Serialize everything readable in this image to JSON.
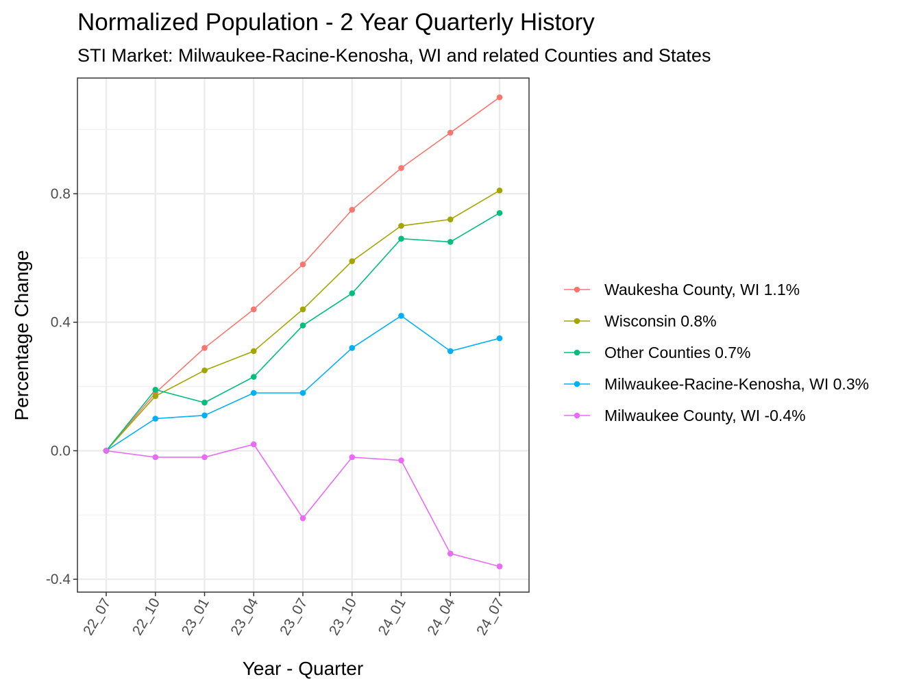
{
  "chart_data": {
    "type": "line",
    "title": "Normalized Population - 2 Year Quarterly History",
    "subtitle": "STI Market: Milwaukee-Racine-Kenosha, WI and related Counties and States",
    "xlabel": "Year - Quarter",
    "ylabel": "Percentage Change",
    "categories": [
      "22_07",
      "22_10",
      "23_01",
      "23_04",
      "23_07",
      "23_10",
      "24_01",
      "24_04",
      "24_07"
    ],
    "yticks": [
      -0.4,
      0.0,
      0.4,
      0.8
    ],
    "ytick_labels": [
      "-0.4",
      "0.0",
      "0.4",
      "0.8"
    ],
    "ylim": [
      -0.44,
      1.16
    ],
    "grid": true,
    "legend_position": "right",
    "series": [
      {
        "name": "Waukesha County, WI 1.1%",
        "color": "#F8766D",
        "values": [
          0.0,
          0.18,
          0.32,
          0.44,
          0.58,
          0.75,
          0.88,
          0.99,
          1.1
        ]
      },
      {
        "name": "Wisconsin 0.8%",
        "color": "#A3A500",
        "values": [
          0.0,
          0.17,
          0.25,
          0.31,
          0.44,
          0.59,
          0.7,
          0.72,
          0.81
        ]
      },
      {
        "name": "Other Counties 0.7%",
        "color": "#00BF7D",
        "values": [
          0.0,
          0.19,
          0.15,
          0.23,
          0.39,
          0.49,
          0.66,
          0.65,
          0.74
        ]
      },
      {
        "name": "Milwaukee-Racine-Kenosha, WI 0.3%",
        "color": "#00B0F6",
        "values": [
          0.0,
          0.1,
          0.11,
          0.18,
          0.18,
          0.32,
          0.42,
          0.31,
          0.35
        ]
      },
      {
        "name": "Milwaukee County, WI -0.4%",
        "color": "#E76BF3",
        "values": [
          0.0,
          -0.02,
          -0.02,
          0.02,
          -0.21,
          -0.02,
          -0.03,
          -0.32,
          -0.36
        ]
      }
    ]
  }
}
